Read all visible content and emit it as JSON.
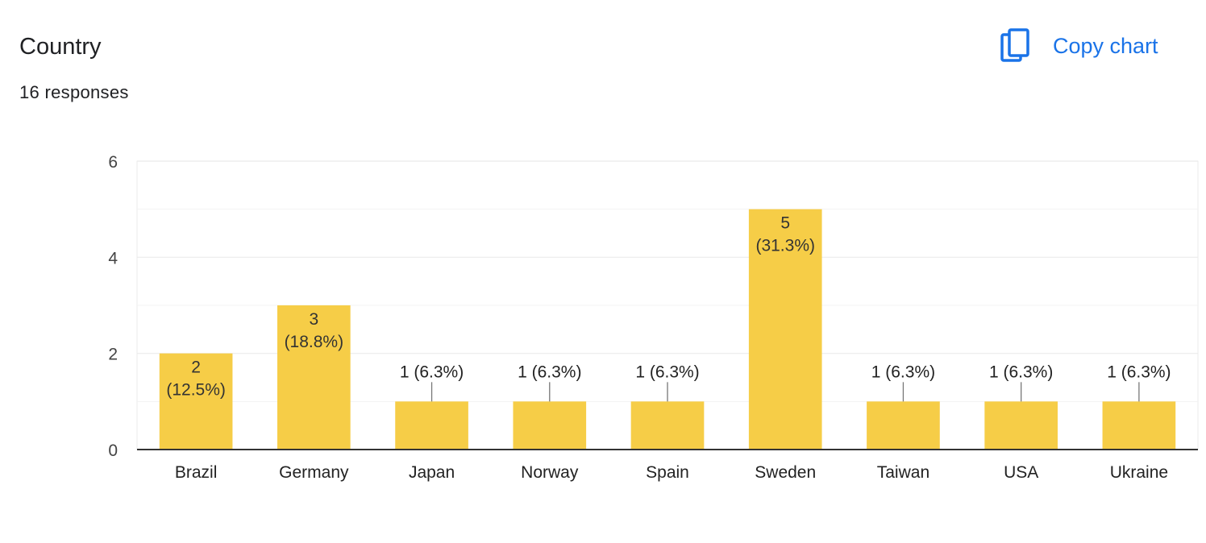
{
  "header": {
    "title": "Country",
    "responses": "16 responses",
    "copy_label": "Copy chart"
  },
  "colors": {
    "bar": "#f6cd47",
    "accent": "#1a73e8",
    "grid": "#ebebeb",
    "axis": "#333333"
  },
  "icons": {
    "copy": "copy-icon"
  },
  "chart_data": {
    "type": "bar",
    "categories": [
      "Brazil",
      "Germany",
      "Japan",
      "Norway",
      "Spain",
      "Sweden",
      "Taiwan",
      "USA",
      "Ukraine"
    ],
    "values": [
      2,
      3,
      1,
      1,
      1,
      5,
      1,
      1,
      1
    ],
    "labels": [
      "2 (12.5%)",
      "3 (18.8%)",
      "1 (6.3%)",
      "1 (6.3%)",
      "1 (6.3%)",
      "5 (31.3%)",
      "1 (6.3%)",
      "1 (6.3%)",
      "1 (6.3%)"
    ],
    "yticks": [
      0,
      2,
      4,
      6
    ],
    "ylim": [
      0,
      6
    ],
    "grid": true,
    "title": "",
    "xlabel": "",
    "ylabel": ""
  }
}
